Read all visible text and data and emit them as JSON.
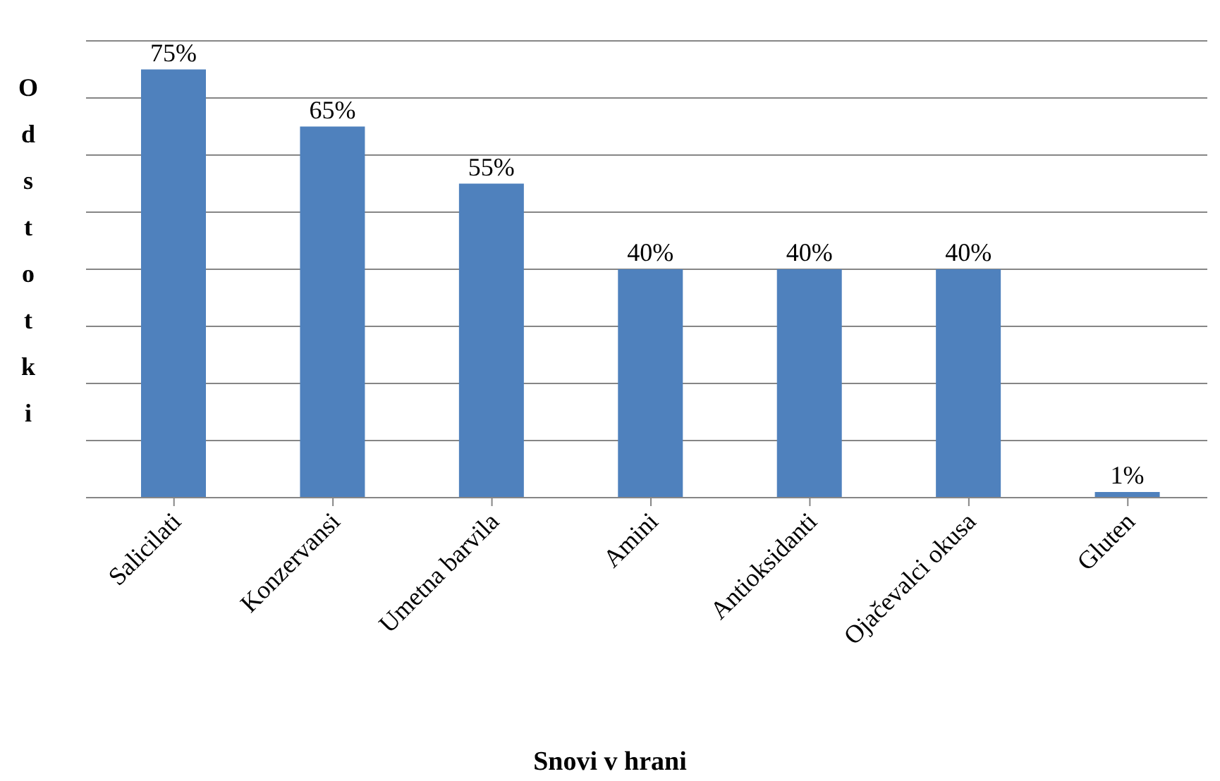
{
  "chart_data": {
    "type": "bar",
    "xlabel": "Snovi v hrani",
    "ylabel": "Odstotki",
    "categories": [
      "Salicilati",
      "Konzervansi",
      "Umetna barvila",
      "Amini",
      "Antioksidanti",
      "Ojačevalci okusa",
      "Gluten"
    ],
    "values": [
      75,
      65,
      55,
      40,
      40,
      40,
      1
    ],
    "value_labels": [
      "75%",
      "65%",
      "55%",
      "40%",
      "40%",
      "40%",
      "1%"
    ],
    "color": "#4f81bd",
    "ylim": [
      0,
      80
    ],
    "yticks": [
      {
        "value": 0,
        "label": null
      },
      {
        "value": 10,
        "label": null
      },
      {
        "value": 20,
        "label": null
      },
      {
        "value": 30,
        "label": null
      },
      {
        "value": 40,
        "label": null
      },
      {
        "value": 50,
        "label": null
      },
      {
        "value": 60,
        "label": null
      },
      {
        "value": 70,
        "label": null
      },
      {
        "value": 80,
        "label": null
      }
    ],
    "grid": "y",
    "tick_labels": "x",
    "legend": false
  }
}
